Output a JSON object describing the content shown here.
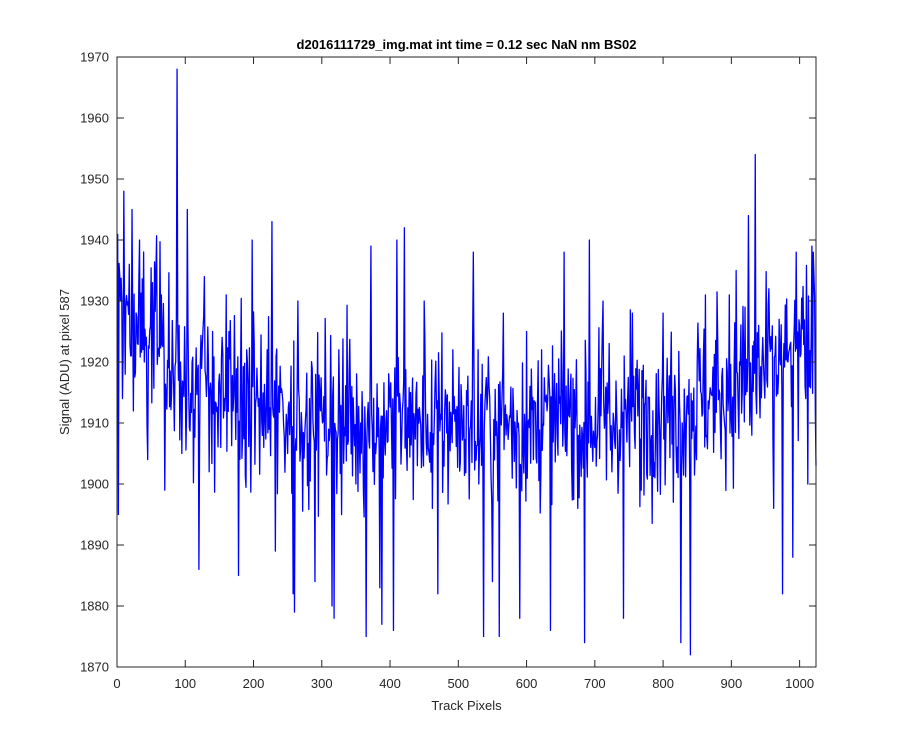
{
  "figure": {
    "background": "#ffffff",
    "axes_color": "#262626"
  },
  "chart_data": {
    "type": "line",
    "title": "d2016111729_img.mat int time = 0.12 sec  NaN nm BS02",
    "xlabel": "Track Pixels",
    "ylabel": "Signal (ADU) at pixel 587",
    "xlim": [
      0,
      1024
    ],
    "ylim": [
      1870,
      1970
    ],
    "xticks": [
      0,
      100,
      200,
      300,
      400,
      500,
      600,
      700,
      800,
      900,
      1000
    ],
    "yticks": [
      1870,
      1880,
      1890,
      1900,
      1910,
      1920,
      1930,
      1940,
      1950,
      1960,
      1970
    ],
    "grid": false,
    "box": true,
    "series": [
      {
        "color": "#0000ff",
        "x_start": 1,
        "x_step": 1,
        "n_points": 1024,
        "key_points": [
          [
            1,
            1941
          ],
          [
            2,
            1895
          ],
          [
            5,
            1930
          ],
          [
            8,
            1914
          ],
          [
            10,
            1948
          ],
          [
            12,
            1918
          ],
          [
            20,
            1921
          ],
          [
            22,
            1945
          ],
          [
            30,
            1923
          ],
          [
            33,
            1940
          ],
          [
            40,
            1920
          ],
          [
            45,
            1904
          ],
          [
            52,
            1933
          ],
          [
            60,
            1922
          ],
          [
            65,
            1931
          ],
          [
            70,
            1899
          ],
          [
            80,
            1915
          ],
          [
            86,
            1920
          ],
          [
            88,
            1968
          ],
          [
            90,
            1917
          ],
          [
            93,
            1920
          ],
          [
            95,
            1905
          ],
          [
            100,
            1918
          ],
          [
            103,
            1945
          ],
          [
            110,
            1920
          ],
          [
            120,
            1886
          ],
          [
            128,
            1934
          ],
          [
            135,
            1902
          ],
          [
            140,
            1925
          ],
          [
            150,
            1918
          ],
          [
            160,
            1931
          ],
          [
            170,
            1912
          ],
          [
            178,
            1885
          ],
          [
            190,
            1922
          ],
          [
            198,
            1940
          ],
          [
            205,
            1919
          ],
          [
            215,
            1906
          ],
          [
            220,
            1922
          ],
          [
            227,
            1943
          ],
          [
            232,
            1889
          ],
          [
            240,
            1915
          ],
          [
            250,
            1905
          ],
          [
            258,
            1882
          ],
          [
            260,
            1879
          ],
          [
            265,
            1930
          ],
          [
            275,
            1908
          ],
          [
            282,
            1914
          ],
          [
            290,
            1884
          ],
          [
            300,
            1912
          ],
          [
            315,
            1880
          ],
          [
            318,
            1878
          ],
          [
            325,
            1922
          ],
          [
            340,
            1918
          ],
          [
            350,
            1900
          ],
          [
            357,
            1910
          ],
          [
            365,
            1875
          ],
          [
            372,
            1939
          ],
          [
            385,
            1883
          ],
          [
            388,
            1877
          ],
          [
            395,
            1912
          ],
          [
            405,
            1876
          ],
          [
            410,
            1940
          ],
          [
            415,
            1913
          ],
          [
            421,
            1942
          ],
          [
            430,
            1915
          ],
          [
            440,
            1903
          ],
          [
            450,
            1930
          ],
          [
            462,
            1896
          ],
          [
            470,
            1882
          ],
          [
            480,
            1912
          ],
          [
            492,
            1922
          ],
          [
            505,
            1913
          ],
          [
            515,
            1908
          ],
          [
            522,
            1938
          ],
          [
            530,
            1900
          ],
          [
            537,
            1875
          ],
          [
            545,
            1916
          ],
          [
            550,
            1884
          ],
          [
            555,
            1908
          ],
          [
            560,
            1875
          ],
          [
            566,
            1928
          ],
          [
            578,
            1908
          ],
          [
            590,
            1878
          ],
          [
            600,
            1925
          ],
          [
            610,
            1904
          ],
          [
            622,
            1922
          ],
          [
            630,
            1912
          ],
          [
            635,
            1876
          ],
          [
            645,
            1908
          ],
          [
            655,
            1938
          ],
          [
            665,
            1918
          ],
          [
            675,
            1896
          ],
          [
            685,
            1874
          ],
          [
            692,
            1940
          ],
          [
            700,
            1906
          ],
          [
            712,
            1930
          ],
          [
            725,
            1902
          ],
          [
            732,
            1912
          ],
          [
            742,
            1878
          ],
          [
            755,
            1928
          ],
          [
            768,
            1899
          ],
          [
            775,
            1917
          ],
          [
            785,
            1912
          ],
          [
            800,
            1928
          ],
          [
            815,
            1897
          ],
          [
            826,
            1874
          ],
          [
            840,
            1872
          ],
          [
            850,
            1920
          ],
          [
            862,
            1931
          ],
          [
            870,
            1915
          ],
          [
            880,
            1924
          ],
          [
            888,
            1913
          ],
          [
            897,
            1931
          ],
          [
            900,
            1911
          ],
          [
            907,
            1935
          ],
          [
            912,
            1920
          ],
          [
            920,
            1929
          ],
          [
            925,
            1944
          ],
          [
            930,
            1908
          ],
          [
            935,
            1954
          ],
          [
            940,
            1926
          ],
          [
            947,
            1920
          ],
          [
            955,
            1932
          ],
          [
            962,
            1896
          ],
          [
            970,
            1927
          ],
          [
            975,
            1882
          ],
          [
            985,
            1922
          ],
          [
            990,
            1888
          ],
          [
            995,
            1938
          ],
          [
            1000,
            1926
          ],
          [
            1008,
            1916
          ],
          [
            1012,
            1900
          ],
          [
            1018,
            1939
          ],
          [
            1020,
            1938
          ],
          [
            1023,
            1912
          ],
          [
            1024,
            1903
          ]
        ]
      }
    ]
  }
}
